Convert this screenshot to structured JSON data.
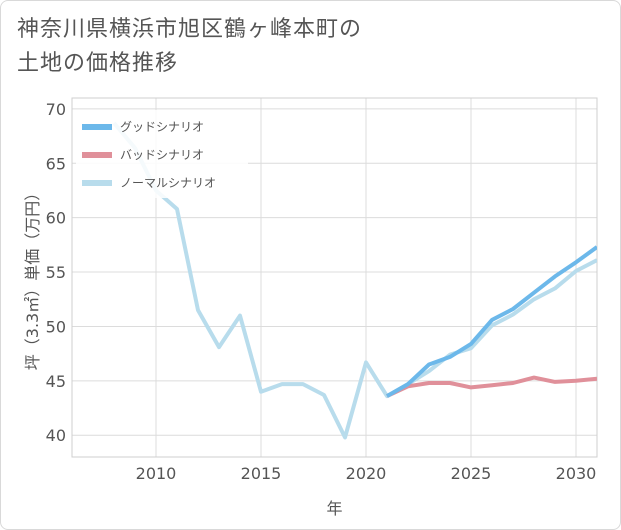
{
  "title_line1": "神奈川県横浜市旭区鶴ヶ峰本町の",
  "title_line2": "土地の価格推移",
  "chart_data": {
    "type": "line",
    "xlabel": "年",
    "ylabel": "坪（3.3㎡）単価（万円）",
    "xlim": [
      2006,
      2031
    ],
    "ylim": [
      38,
      71
    ],
    "x_ticks": [
      2010,
      2015,
      2020,
      2025,
      2030
    ],
    "y_ticks": [
      40,
      45,
      50,
      55,
      60,
      65,
      70
    ],
    "grid": true,
    "legend_position": "top-left",
    "series": [
      {
        "name": "グッドシナリオ",
        "color": "#6cb8ea",
        "x": [
          2021,
          2022,
          2023,
          2024,
          2025,
          2026,
          2027,
          2028,
          2029,
          2030,
          2031
        ],
        "y": [
          43.6,
          44.7,
          46.5,
          47.2,
          48.4,
          50.6,
          51.6,
          53.1,
          54.6,
          55.9,
          57.3
        ]
      },
      {
        "name": "バッドシナリオ",
        "color": "#e0909a",
        "x": [
          2021,
          2022,
          2023,
          2024,
          2025,
          2026,
          2027,
          2028,
          2029,
          2030,
          2031
        ],
        "y": [
          43.6,
          44.5,
          44.8,
          44.8,
          44.4,
          44.6,
          44.8,
          45.3,
          44.9,
          45.0,
          45.2
        ]
      },
      {
        "name": "ノーマルシナリオ",
        "color": "#b8dcec",
        "x": [
          2008,
          2009,
          2010,
          2011,
          2012,
          2013,
          2014,
          2015,
          2016,
          2017,
          2018,
          2019,
          2020,
          2021,
          2022,
          2023,
          2024,
          2025,
          2026,
          2027,
          2028,
          2029,
          2030,
          2031
        ],
        "y": [
          68.7,
          66.4,
          62.5,
          60.8,
          51.5,
          48.1,
          51.0,
          44.0,
          44.7,
          44.7,
          43.7,
          39.8,
          46.7,
          43.6,
          44.7,
          45.9,
          47.4,
          48.0,
          50.1,
          51.1,
          52.5,
          53.5,
          55.1,
          56.1
        ]
      }
    ]
  }
}
